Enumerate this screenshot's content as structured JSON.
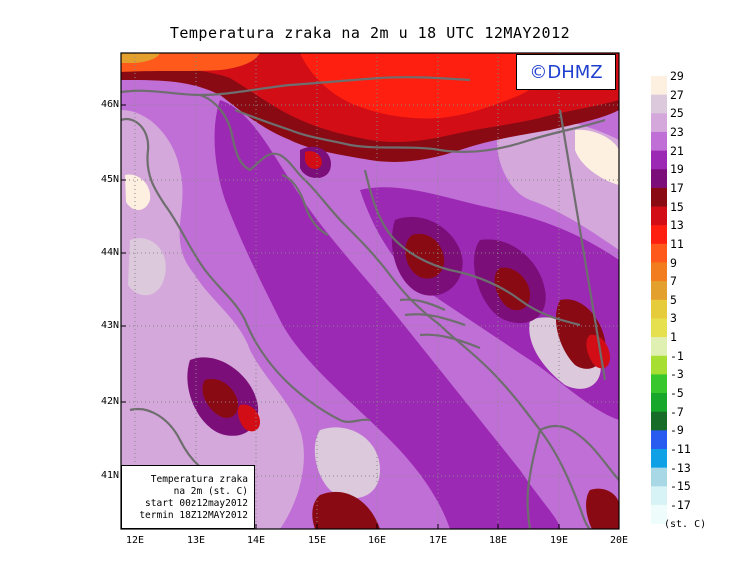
{
  "title": "Temperatura zraka na 2m u 18 UTC 12MAY2012",
  "watermark": "©DHMZ",
  "info_box": {
    "line1": "Temperatura zraka",
    "line2": "na 2m (st. C)",
    "line3": "start 00z12may2012",
    "line4": "termin 18Z12MAY2012"
  },
  "lat_labels": [
    "46N",
    "45N",
    "44N",
    "43N",
    "42N",
    "41N"
  ],
  "lon_labels": [
    "12E",
    "13E",
    "14E",
    "15E",
    "16E",
    "17E",
    "18E",
    "19E",
    "20E"
  ],
  "legend": {
    "unit": "(st. C)",
    "levels": [
      {
        "value": "29",
        "color": "#fdf0e0"
      },
      {
        "value": "27",
        "color": "#dcc9dc"
      },
      {
        "value": "25",
        "color": "#d4a8da"
      },
      {
        "value": "23",
        "color": "#c06fd6"
      },
      {
        "value": "21",
        "color": "#9c29b4"
      },
      {
        "value": "19",
        "color": "#7c0e7a"
      },
      {
        "value": "17",
        "color": "#8a0a14"
      },
      {
        "value": "15",
        "color": "#d20d16"
      },
      {
        "value": "13",
        "color": "#ff1f10"
      },
      {
        "value": "11",
        "color": "#ff5a1c"
      },
      {
        "value": "9",
        "color": "#f17d1e"
      },
      {
        "value": "7",
        "color": "#e3a02c"
      },
      {
        "value": "5",
        "color": "#e6cc3a"
      },
      {
        "value": "3",
        "color": "#e6e04f"
      },
      {
        "value": "1",
        "color": "#e0f0b2"
      },
      {
        "value": "-1",
        "color": "#a6de32"
      },
      {
        "value": "-3",
        "color": "#39c72e"
      },
      {
        "value": "-5",
        "color": "#17a72a"
      },
      {
        "value": "-7",
        "color": "#176c27"
      },
      {
        "value": "-9",
        "color": "#285bf0"
      },
      {
        "value": "-11",
        "color": "#10a0e6"
      },
      {
        "value": "-13",
        "color": "#a8d8e6"
      },
      {
        "value": "-15",
        "color": "#d8f3f6"
      },
      {
        "value": "-17",
        "color": "#eefcfc"
      }
    ]
  }
}
